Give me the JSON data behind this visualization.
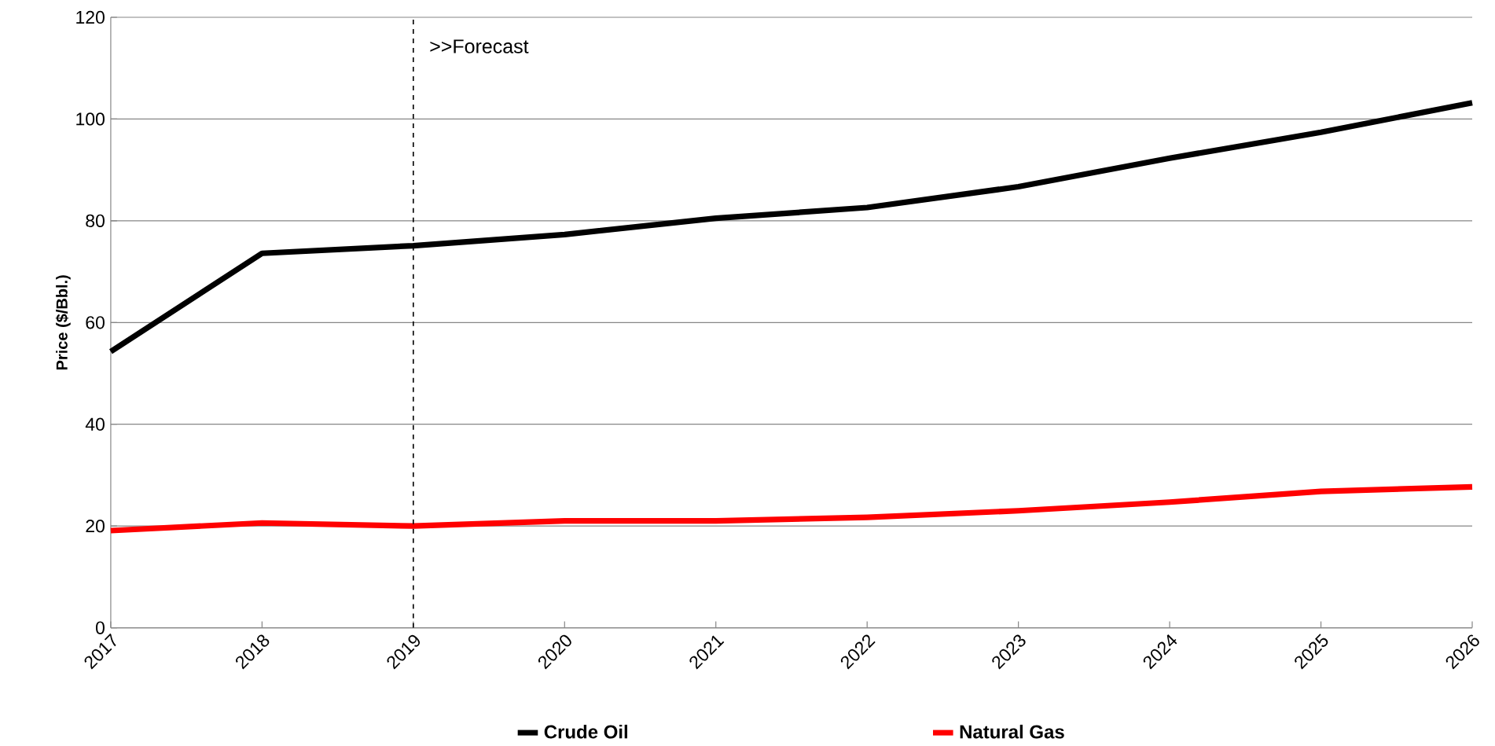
{
  "chart_data": {
    "type": "line",
    "ylabel": "Price ($/Bbl.)",
    "x": [
      2017,
      2018,
      2019,
      2020,
      2021,
      2022,
      2023,
      2024,
      2025,
      2026
    ],
    "series": [
      {
        "name": "Crude Oil",
        "color": "#000000",
        "values": [
          54.3,
          73.6,
          75.1,
          77.3,
          80.5,
          82.6,
          86.7,
          92.3,
          97.4,
          103.2
        ]
      },
      {
        "name": "Natural Gas",
        "color": "#ff0000",
        "values": [
          19.1,
          20.6,
          20.0,
          21.0,
          21.0,
          21.7,
          23.0,
          24.7,
          26.8,
          27.7
        ]
      }
    ],
    "xlim": [
      2017,
      2026
    ],
    "xticks": [
      2017,
      2018,
      2019,
      2020,
      2021,
      2022,
      2023,
      2024,
      2025,
      2026
    ],
    "ylim": [
      0,
      120
    ],
    "yticks": [
      0,
      20,
      40,
      60,
      80,
      100,
      120
    ],
    "ref_lines": [
      {
        "axis": "x",
        "value": 2019,
        "label": ">>Forecast",
        "color": "#000000",
        "line_style": "dashed"
      }
    ],
    "grid": "y",
    "legend": "bottom",
    "marker": "none",
    "line_style": "solid"
  }
}
